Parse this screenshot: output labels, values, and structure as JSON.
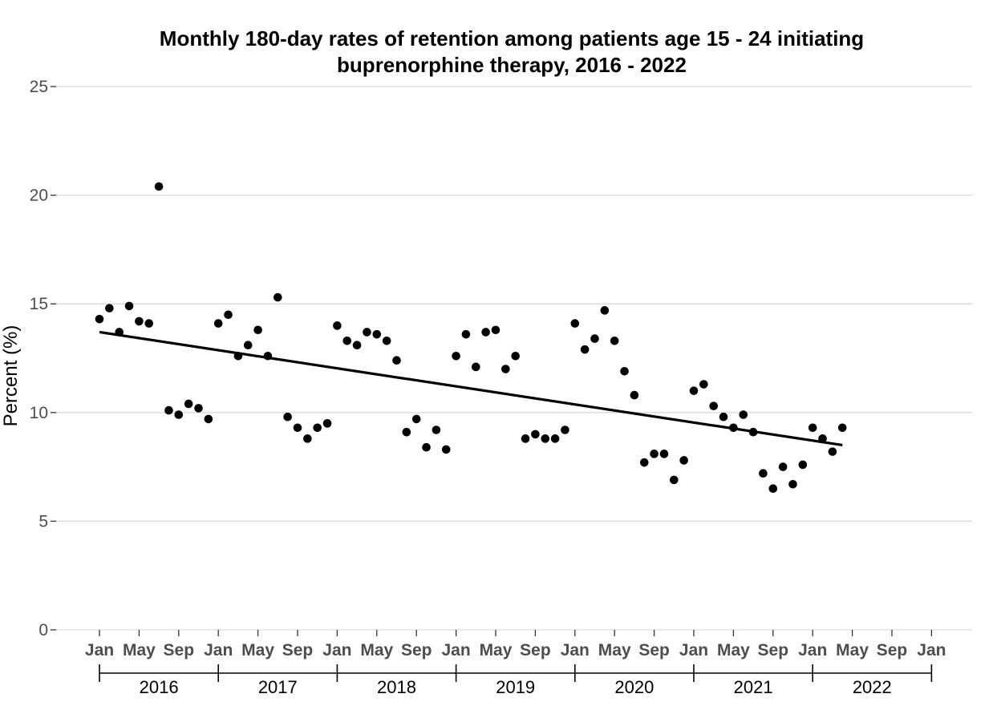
{
  "chart_data": {
    "type": "scatter",
    "title_lines": [
      "Monthly 180-day rates of retention among patients age 15 - 24 initiating",
      "buprenorphine therapy, 2016 - 2022"
    ],
    "ylabel": "Percent (%)",
    "ylim": [
      0,
      25
    ],
    "yticks": [
      "0",
      "5",
      "10",
      "15",
      "20",
      "25"
    ],
    "grid": true,
    "x_month_labels": [
      "Jan",
      "May",
      "Sep",
      "Jan",
      "May",
      "Sep",
      "Jan",
      "May",
      "Sep",
      "Jan",
      "May",
      "Sep",
      "Jan",
      "May",
      "Sep",
      "Jan",
      "May",
      "Sep",
      "Jan",
      "May",
      "Sep",
      "Jan"
    ],
    "x_year_labels": [
      "2016",
      "2017",
      "2018",
      "2019",
      "2020",
      "2021",
      "2022"
    ],
    "points": [
      {
        "x": "2016-01",
        "y": 14.3
      },
      {
        "x": "2016-02",
        "y": 14.8
      },
      {
        "x": "2016-03",
        "y": 13.7
      },
      {
        "x": "2016-04",
        "y": 14.9
      },
      {
        "x": "2016-05",
        "y": 14.2
      },
      {
        "x": "2016-06",
        "y": 14.1
      },
      {
        "x": "2016-07",
        "y": 20.4
      },
      {
        "x": "2016-08",
        "y": 10.1
      },
      {
        "x": "2016-09",
        "y": 9.9
      },
      {
        "x": "2016-10",
        "y": 10.4
      },
      {
        "x": "2016-11",
        "y": 10.2
      },
      {
        "x": "2016-12",
        "y": 9.7
      },
      {
        "x": "2017-01",
        "y": 14.1
      },
      {
        "x": "2017-02",
        "y": 14.5
      },
      {
        "x": "2017-03",
        "y": 12.6
      },
      {
        "x": "2017-04",
        "y": 13.1
      },
      {
        "x": "2017-05",
        "y": 13.8
      },
      {
        "x": "2017-06",
        "y": 12.6
      },
      {
        "x": "2017-07",
        "y": 15.3
      },
      {
        "x": "2017-08",
        "y": 9.8
      },
      {
        "x": "2017-09",
        "y": 9.3
      },
      {
        "x": "2017-10",
        "y": 8.8
      },
      {
        "x": "2017-11",
        "y": 9.3
      },
      {
        "x": "2017-12",
        "y": 9.5
      },
      {
        "x": "2018-01",
        "y": 14.0
      },
      {
        "x": "2018-02",
        "y": 13.3
      },
      {
        "x": "2018-03",
        "y": 13.1
      },
      {
        "x": "2018-04",
        "y": 13.7
      },
      {
        "x": "2018-05",
        "y": 13.6
      },
      {
        "x": "2018-06",
        "y": 13.3
      },
      {
        "x": "2018-07",
        "y": 12.4
      },
      {
        "x": "2018-08",
        "y": 9.1
      },
      {
        "x": "2018-09",
        "y": 9.7
      },
      {
        "x": "2018-10",
        "y": 8.4
      },
      {
        "x": "2018-11",
        "y": 9.2
      },
      {
        "x": "2018-12",
        "y": 8.3
      },
      {
        "x": "2019-01",
        "y": 12.6
      },
      {
        "x": "2019-02",
        "y": 13.6
      },
      {
        "x": "2019-03",
        "y": 12.1
      },
      {
        "x": "2019-04",
        "y": 13.7
      },
      {
        "x": "2019-05",
        "y": 13.8
      },
      {
        "x": "2019-06",
        "y": 12.0
      },
      {
        "x": "2019-07",
        "y": 12.6
      },
      {
        "x": "2019-08",
        "y": 8.8
      },
      {
        "x": "2019-09",
        "y": 9.0
      },
      {
        "x": "2019-10",
        "y": 8.8
      },
      {
        "x": "2019-11",
        "y": 8.8
      },
      {
        "x": "2019-12",
        "y": 9.2
      },
      {
        "x": "2020-01",
        "y": 14.1
      },
      {
        "x": "2020-02",
        "y": 12.9
      },
      {
        "x": "2020-03",
        "y": 13.4
      },
      {
        "x": "2020-04",
        "y": 14.7
      },
      {
        "x": "2020-05",
        "y": 13.3
      },
      {
        "x": "2020-06",
        "y": 11.9
      },
      {
        "x": "2020-07",
        "y": 10.8
      },
      {
        "x": "2020-08",
        "y": 7.7
      },
      {
        "x": "2020-09",
        "y": 8.1
      },
      {
        "x": "2020-10",
        "y": 8.1
      },
      {
        "x": "2020-11",
        "y": 6.9
      },
      {
        "x": "2020-12",
        "y": 7.8
      },
      {
        "x": "2021-01",
        "y": 11.0
      },
      {
        "x": "2021-02",
        "y": 11.3
      },
      {
        "x": "2021-03",
        "y": 10.3
      },
      {
        "x": "2021-04",
        "y": 9.8
      },
      {
        "x": "2021-05",
        "y": 9.3
      },
      {
        "x": "2021-06",
        "y": 9.9
      },
      {
        "x": "2021-07",
        "y": 9.1
      },
      {
        "x": "2021-08",
        "y": 7.2
      },
      {
        "x": "2021-09",
        "y": 6.5
      },
      {
        "x": "2021-10",
        "y": 7.5
      },
      {
        "x": "2021-11",
        "y": 6.7
      },
      {
        "x": "2021-12",
        "y": 7.6
      },
      {
        "x": "2022-01",
        "y": 9.3
      },
      {
        "x": "2022-02",
        "y": 8.8
      },
      {
        "x": "2022-03",
        "y": 8.2
      },
      {
        "x": "2022-04",
        "y": 9.3
      }
    ],
    "trend_line": {
      "x": [
        "2016-01",
        "2022-04"
      ],
      "y": [
        13.7,
        8.5
      ]
    },
    "colors": {
      "points": "#000000",
      "trend": "#000000",
      "grid": "#d9d9d9",
      "tick_text": "#4d4d4d"
    }
  }
}
